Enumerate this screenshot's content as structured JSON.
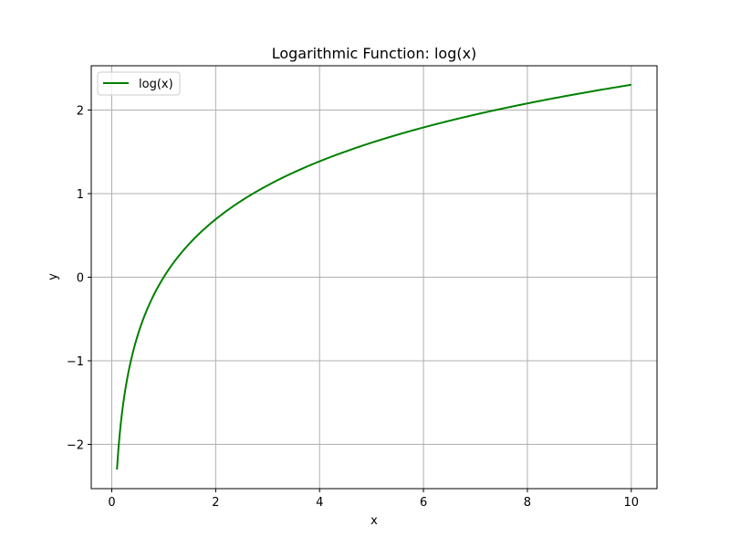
{
  "chart_data": {
    "type": "line",
    "title": "Logarithmic Function: log(x)",
    "xlabel": "x",
    "ylabel": "y",
    "xlim": [
      -0.395,
      10.495
    ],
    "ylim": [
      -2.53,
      2.53
    ],
    "x_ticks": [
      0,
      2,
      4,
      6,
      8,
      10
    ],
    "x_tick_labels": [
      "0",
      "2",
      "4",
      "6",
      "8",
      "10"
    ],
    "y_ticks": [
      -2,
      -1,
      0,
      1,
      2
    ],
    "y_tick_labels": [
      "−2",
      "−1",
      "0",
      "1",
      "2"
    ],
    "grid": true,
    "legend": {
      "position": "upper-left"
    },
    "series": [
      {
        "name": "log(x)",
        "function": "log(x)",
        "x_range": [
          0.1,
          10
        ],
        "color": "#008000",
        "x": [
          0.1,
          0.2,
          0.3,
          0.5,
          0.75,
          1,
          1.5,
          2,
          3,
          4,
          5,
          6,
          7,
          8,
          9,
          10
        ],
        "y": [
          -2.303,
          -1.609,
          -1.204,
          -0.693,
          -0.288,
          0,
          0.405,
          0.693,
          1.099,
          1.386,
          1.609,
          1.792,
          1.946,
          2.079,
          2.197,
          2.303
        ]
      }
    ]
  }
}
